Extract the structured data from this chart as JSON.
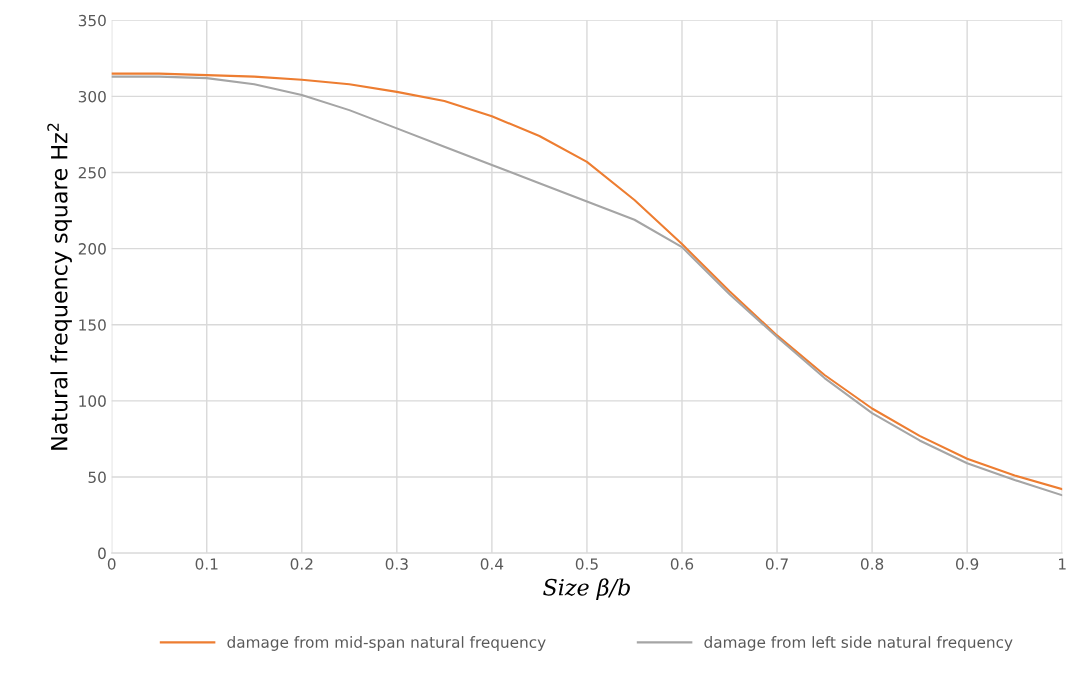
{
  "chart_data": {
    "type": "line",
    "xlabel": "Size β/b",
    "ylabel": "Natural frequency square Hz$^{2}$",
    "x": [
      0,
      0.05,
      0.1,
      0.15,
      0.2,
      0.25,
      0.3,
      0.35,
      0.4,
      0.45,
      0.5,
      0.55,
      0.6,
      0.65,
      0.7,
      0.75,
      0.8,
      0.85,
      0.9,
      0.95,
      1
    ],
    "series": [
      {
        "name": "damage from mid-span natural frequency",
        "color": "#ed7d31",
        "values": [
          315,
          315,
          314,
          313,
          311,
          308,
          303,
          297,
          287,
          274,
          257,
          232,
          203,
          172,
          143,
          117,
          95,
          77,
          62,
          51,
          42
        ]
      },
      {
        "name": "damage from left side natural frequency",
        "color": "#a5a5a5",
        "values": [
          313,
          313,
          312,
          308,
          301,
          291,
          279,
          267,
          255,
          243,
          231,
          219,
          201,
          170,
          142,
          115,
          92,
          74,
          59,
          48,
          38
        ]
      }
    ],
    "xlim": [
      0,
      1
    ],
    "ylim": [
      0,
      350
    ],
    "xticks": [
      0,
      0.1,
      0.2,
      0.3,
      0.4,
      0.5,
      0.6,
      0.7,
      0.8,
      0.9,
      1
    ],
    "yticks": [
      0,
      50,
      100,
      150,
      200,
      250,
      300,
      350
    ],
    "grid": true,
    "legend": "bottom",
    "marker": "none",
    "line_style": "solid"
  }
}
